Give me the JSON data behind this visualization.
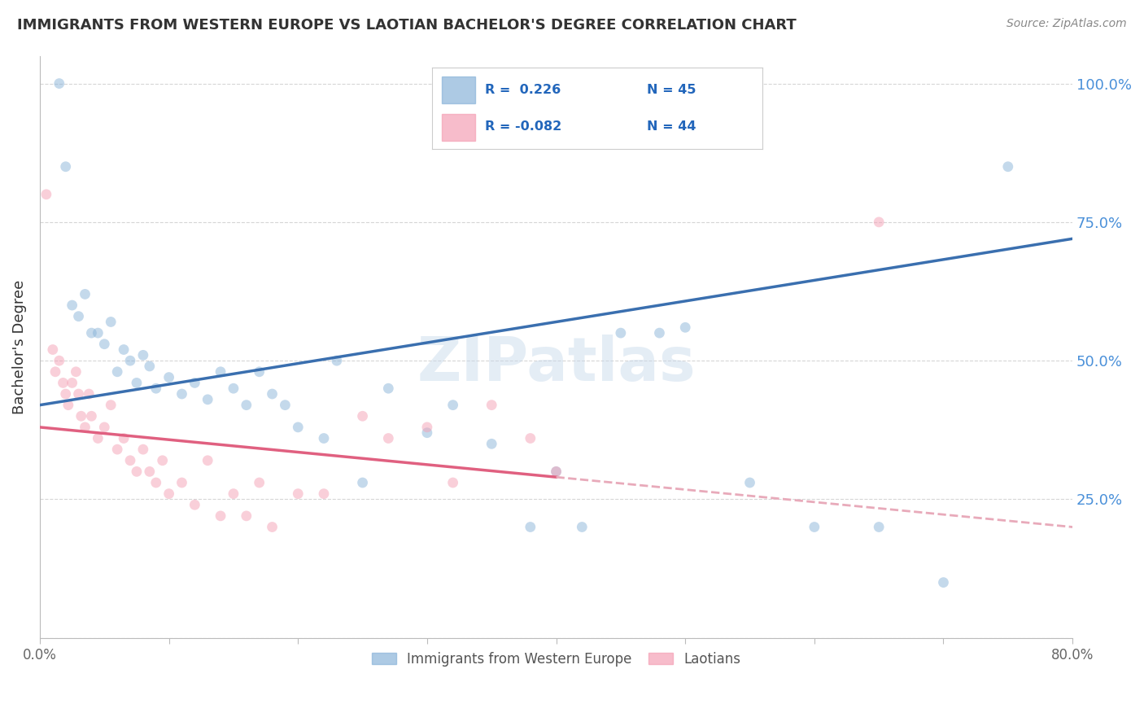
{
  "title": "IMMIGRANTS FROM WESTERN EUROPE VS LAOTIAN BACHELOR'S DEGREE CORRELATION CHART",
  "source": "Source: ZipAtlas.com",
  "ylabel": "Bachelor's Degree",
  "legend_blue_label": "Immigrants from Western Europe",
  "legend_pink_label": "Laotians",
  "blue_color": "#8ab4d9",
  "pink_color": "#f4a0b5",
  "blue_line_color": "#3a6faf",
  "pink_line_color": "#e06080",
  "pink_dashed_color": "#e8aaba",
  "watermark": "ZIPatlas",
  "background_color": "#ffffff",
  "grid_color": "#cccccc",
  "xlim": [
    0,
    80
  ],
  "ylim": [
    0,
    105
  ],
  "scatter_size": 85,
  "scatter_alpha": 0.5,
  "blue_line_x0": 0,
  "blue_line_y0": 42,
  "blue_line_x1": 80,
  "blue_line_y1": 72,
  "pink_line_x0": 0,
  "pink_line_y0": 38,
  "pink_solid_end_x": 40,
  "pink_line_x1": 80,
  "pink_line_y1": 20,
  "blue_scatter_x": [
    1.5,
    2.0,
    2.5,
    3.0,
    3.5,
    4.0,
    4.5,
    5.0,
    5.5,
    6.0,
    6.5,
    7.0,
    7.5,
    8.0,
    8.5,
    9.0,
    10.0,
    11.0,
    12.0,
    13.0,
    14.0,
    15.0,
    16.0,
    17.0,
    18.0,
    19.0,
    20.0,
    22.0,
    23.0,
    25.0,
    27.0,
    30.0,
    32.0,
    35.0,
    38.0,
    40.0,
    42.0,
    45.0,
    48.0,
    50.0,
    55.0,
    60.0,
    65.0,
    70.0,
    75.0
  ],
  "blue_scatter_y": [
    100.0,
    85.0,
    60.0,
    58.0,
    62.0,
    55.0,
    55.0,
    53.0,
    57.0,
    48.0,
    52.0,
    50.0,
    46.0,
    51.0,
    49.0,
    45.0,
    47.0,
    44.0,
    46.0,
    43.0,
    48.0,
    45.0,
    42.0,
    48.0,
    44.0,
    42.0,
    38.0,
    36.0,
    50.0,
    28.0,
    45.0,
    37.0,
    42.0,
    35.0,
    20.0,
    30.0,
    20.0,
    55.0,
    55.0,
    56.0,
    28.0,
    20.0,
    20.0,
    10.0,
    85.0
  ],
  "pink_scatter_x": [
    0.5,
    1.0,
    1.2,
    1.5,
    1.8,
    2.0,
    2.2,
    2.5,
    2.8,
    3.0,
    3.2,
    3.5,
    3.8,
    4.0,
    4.5,
    5.0,
    5.5,
    6.0,
    6.5,
    7.0,
    7.5,
    8.0,
    8.5,
    9.0,
    9.5,
    10.0,
    11.0,
    12.0,
    13.0,
    14.0,
    15.0,
    16.0,
    17.0,
    18.0,
    20.0,
    22.0,
    25.0,
    27.0,
    30.0,
    32.0,
    35.0,
    38.0,
    40.0,
    65.0
  ],
  "pink_scatter_y": [
    80.0,
    52.0,
    48.0,
    50.0,
    46.0,
    44.0,
    42.0,
    46.0,
    48.0,
    44.0,
    40.0,
    38.0,
    44.0,
    40.0,
    36.0,
    38.0,
    42.0,
    34.0,
    36.0,
    32.0,
    30.0,
    34.0,
    30.0,
    28.0,
    32.0,
    26.0,
    28.0,
    24.0,
    32.0,
    22.0,
    26.0,
    22.0,
    28.0,
    20.0,
    26.0,
    26.0,
    40.0,
    36.0,
    38.0,
    28.0,
    42.0,
    36.0,
    30.0,
    75.0
  ]
}
